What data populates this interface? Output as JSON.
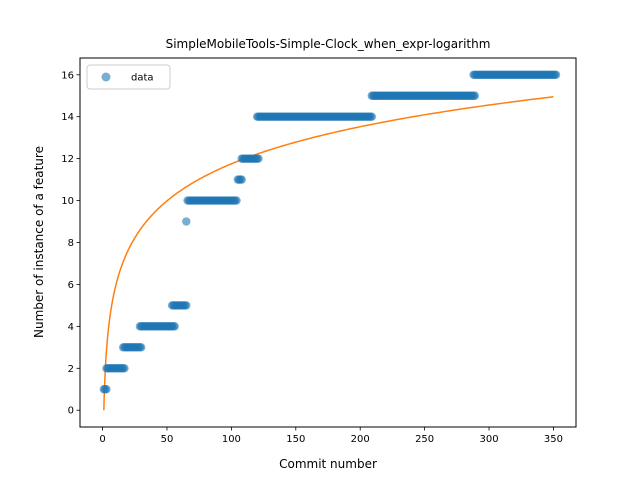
{
  "chart_data": {
    "type": "scatter",
    "title": "SimpleMobileTools-Simple-Clock_when_expr-logarithm",
    "xlabel": "Commit number",
    "ylabel": "Number of instance of a feature",
    "xlim": [
      -17.5,
      367.5
    ],
    "ylim": [
      -0.8,
      16.8
    ],
    "xticks": [
      0,
      50,
      100,
      150,
      200,
      250,
      300,
      350
    ],
    "yticks": [
      0,
      2,
      4,
      6,
      8,
      10,
      12,
      14,
      16
    ],
    "grid": false,
    "legend": {
      "location": "upper-left",
      "entries": [
        "data"
      ]
    },
    "colors": {
      "data": "#1f77b4",
      "fit": "#ff7f0e"
    },
    "series": [
      {
        "name": "data",
        "kind": "scatter",
        "segments": [
          {
            "x_start": 1,
            "x_end": 3,
            "y": 1
          },
          {
            "x_start": 3,
            "x_end": 17,
            "y": 2
          },
          {
            "x_start": 16,
            "x_end": 30,
            "y": 3
          },
          {
            "x_start": 29,
            "x_end": 56,
            "y": 4
          },
          {
            "x_start": 54,
            "x_end": 65,
            "y": 5
          },
          {
            "x_start": 65,
            "x_end": 65,
            "y": 9
          },
          {
            "x_start": 66,
            "x_end": 104,
            "y": 10
          },
          {
            "x_start": 105,
            "x_end": 108,
            "y": 11
          },
          {
            "x_start": 108,
            "x_end": 121,
            "y": 12
          },
          {
            "x_start": 120,
            "x_end": 209,
            "y": 14
          },
          {
            "x_start": 209,
            "x_end": 289,
            "y": 15
          },
          {
            "x_start": 288,
            "x_end": 352,
            "y": 16
          }
        ]
      },
      {
        "name": "",
        "kind": "line",
        "x_range": [
          1,
          350
        ],
        "y_range": [
          0,
          14.95
        ]
      }
    ]
  }
}
